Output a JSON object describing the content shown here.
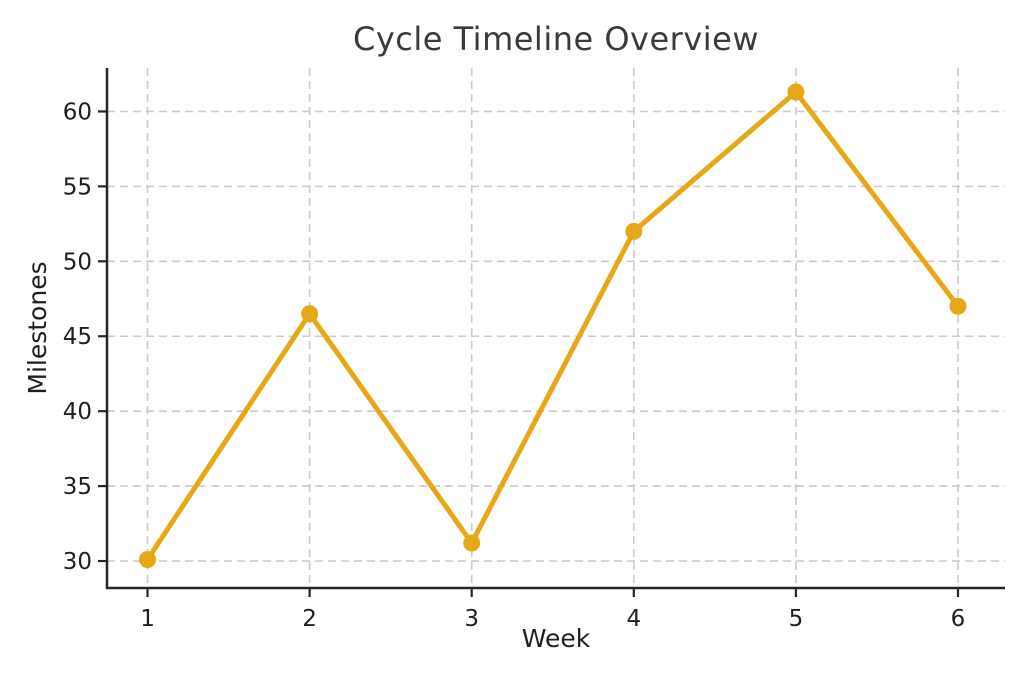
{
  "title": "Cycle Timeline Overview",
  "colors": {
    "line": "#E6A817",
    "grid": "#cbcbcb",
    "axis": "#262626",
    "title_text": "#3a3a3a",
    "tick_text": "#1f1f1f",
    "background": "#ffffff"
  },
  "chart_data": {
    "type": "line",
    "title": "Cycle Timeline Overview",
    "xlabel": "Week",
    "ylabel": "Milestones",
    "x": [
      1,
      2,
      3,
      4,
      5,
      6
    ],
    "series": [
      {
        "name": "Milestones",
        "values": [
          30.1,
          46.5,
          31.2,
          52.0,
          61.3,
          47.0
        ]
      }
    ],
    "x_ticks": [
      1,
      2,
      3,
      4,
      5,
      6
    ],
    "y_ticks": [
      30,
      35,
      40,
      45,
      50,
      55,
      60
    ],
    "xlim": [
      0.75,
      6.29
    ],
    "ylim": [
      28.2,
      62.9
    ],
    "grid": true,
    "grid_style": "dashed",
    "legend": "none",
    "marker": "circle",
    "line_color": "#E6A817"
  }
}
